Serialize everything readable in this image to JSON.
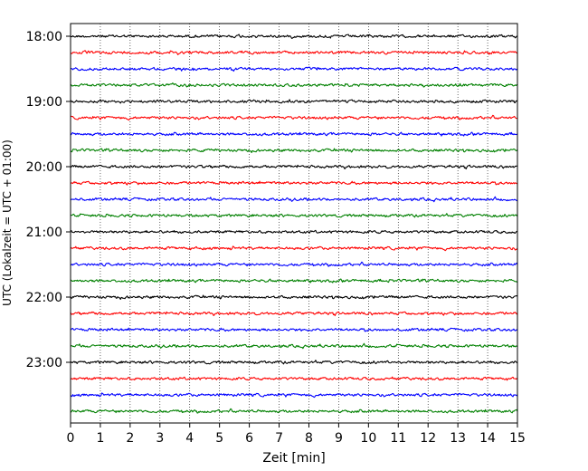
{
  "chart_data": {
    "type": "line",
    "subtype": "helicorder",
    "title": "",
    "xlabel": "Zeit  [min]",
    "ylabel": "UTC (Lokalzeit = UTC + 01:00)",
    "xlim": [
      0,
      15
    ],
    "x_ticks": [
      "0",
      "1",
      "2",
      "3",
      "4",
      "5",
      "6",
      "7",
      "8",
      "9",
      "10",
      "11",
      "12",
      "13",
      "14",
      "15"
    ],
    "y_ticks": [
      {
        "label": "18:00",
        "row": 0
      },
      {
        "label": "19:00",
        "row": 4
      },
      {
        "label": "20:00",
        "row": 8
      },
      {
        "label": "21:00",
        "row": 12
      },
      {
        "label": "22:00",
        "row": 16
      },
      {
        "label": "23:00",
        "row": 20
      }
    ],
    "vertical_grid": "dotted at every minute",
    "row_start_times": [
      "18:00",
      "18:15",
      "18:30",
      "18:45",
      "19:00",
      "19:15",
      "19:30",
      "19:45",
      "20:00",
      "20:15",
      "20:30",
      "20:45",
      "21:00",
      "21:15",
      "21:30",
      "21:45",
      "22:00",
      "22:15",
      "22:30",
      "22:45",
      "23:00",
      "23:15",
      "23:30",
      "23:45"
    ],
    "trace_colors": [
      "#000000",
      "#ff0000",
      "#0000ff",
      "#008000"
    ],
    "row_minutes": 15,
    "trace_character": "continuous low-amplitude background noise, no distinct events"
  }
}
